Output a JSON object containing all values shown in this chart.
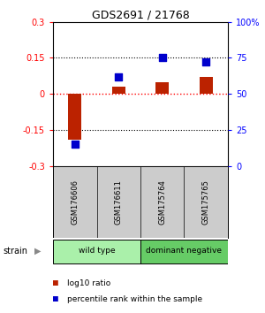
{
  "title": "GDS2691 / 21768",
  "samples": [
    "GSM176606",
    "GSM176611",
    "GSM175764",
    "GSM175765"
  ],
  "log10_ratio": [
    -0.19,
    0.03,
    0.05,
    0.07
  ],
  "percentile_rank": [
    15,
    62,
    75,
    72
  ],
  "groups": [
    {
      "label": "wild type",
      "color": "#aaf0aa",
      "span": [
        0,
        2
      ]
    },
    {
      "label": "dominant negative",
      "color": "#66cc66",
      "span": [
        2,
        4
      ]
    }
  ],
  "ylim_left": [
    -0.3,
    0.3
  ],
  "ylim_right": [
    0,
    100
  ],
  "yticks_left": [
    -0.3,
    -0.15,
    0,
    0.15,
    0.3
  ],
  "ytick_labels_left": [
    "-0.3",
    "-0.15",
    "0",
    "0.15",
    "0.3"
  ],
  "yticks_right": [
    0,
    25,
    50,
    75,
    100
  ],
  "ytick_labels_right": [
    "0",
    "25",
    "50",
    "75",
    "100%"
  ],
  "hlines_dotted": [
    -0.15,
    0.15
  ],
  "hline_red": 0,
  "bar_color": "#bb2200",
  "dot_color": "#0000cc",
  "bar_width": 0.3,
  "dot_size": 30,
  "strain_label": "strain",
  "arrow": "▶",
  "legend_bar_label": "log10 ratio",
  "legend_dot_label": "percentile rank within the sample",
  "bg_gsm": "#cccccc",
  "bg_white": "#ffffff"
}
